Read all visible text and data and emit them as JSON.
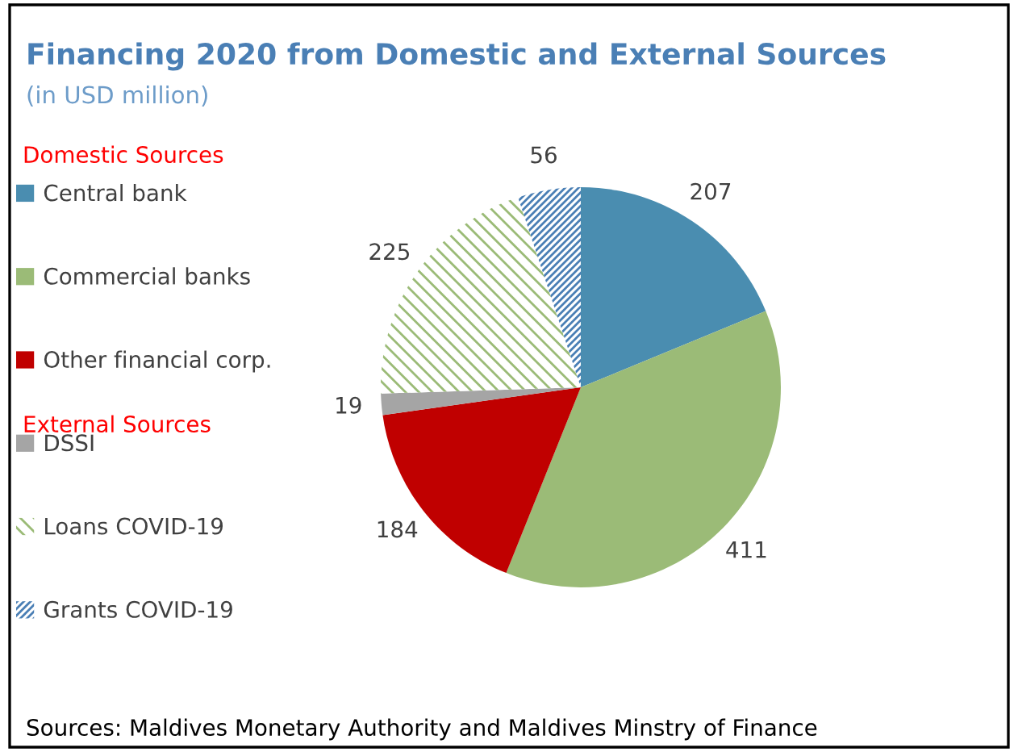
{
  "chart_data": {
    "type": "pie",
    "title": "Financing 2020 from Domestic and External Sources",
    "subtitle": "(in USD million)",
    "categories": [
      "Central bank",
      "Commercial banks",
      "Other financial corp.",
      "DSSI",
      "Loans COVID-19",
      "Grants COVID-19"
    ],
    "values": [
      207,
      411,
      184,
      19,
      225,
      56
    ],
    "colors": [
      "#4a8db0",
      "#9bbb77",
      "#c00000",
      "#a5a5a5",
      "#9bbb77",
      "#4a7fb5"
    ],
    "data_labels": true,
    "legend": "left",
    "annotations": [
      "Domestic Sources",
      "External Sources",
      "Sources: Maldives Monetary Authority and Maldives Minstry of Finance"
    ]
  }
}
